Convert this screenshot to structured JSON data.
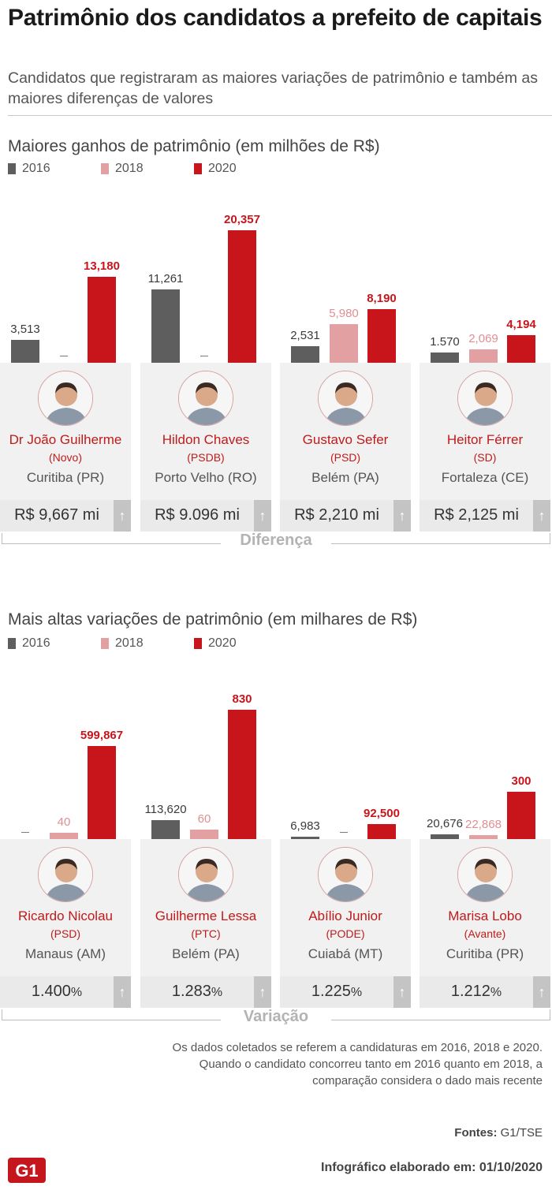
{
  "header": {
    "title": "Patrimônio dos candidatos a prefeito de capitais",
    "subtitle": "Candidatos que registraram as maiores variações de patrimônio e também as maiores diferenças de valores"
  },
  "colors": {
    "2016": "#5e5e5e",
    "2018": "#e3a0a3",
    "2020": "#c8151c",
    "name": "#c01a1a"
  },
  "legend": [
    {
      "label": "2016",
      "color": "#5e5e5e"
    },
    {
      "label": "2018",
      "color": "#e3a0a3"
    },
    {
      "label": "2020",
      "color": "#c8151c"
    }
  ],
  "chart_data": [
    {
      "type": "bar",
      "title": "Maiores ganhos de patrimônio (em milhões de R$)",
      "unit": "milhões de R$",
      "series_names": [
        "2016",
        "2018",
        "2020"
      ],
      "categories": [
        "Dr João Guilherme",
        "Hildon Chaves",
        "Gustavo Sefer",
        "Heitor Férrer"
      ],
      "values": [
        [
          3.513,
          null,
          13.18
        ],
        [
          11.261,
          null,
          20.357
        ],
        [
          2.531,
          5.98,
          8.19
        ],
        [
          1.57,
          2.069,
          4.194
        ]
      ],
      "labels": [
        [
          "3,513",
          "–",
          "13,180"
        ],
        [
          "11,261",
          "–",
          "20,357"
        ],
        [
          "2,531",
          "5,980",
          "8,190"
        ],
        [
          "1.570",
          "2,069",
          "4,194"
        ]
      ],
      "ylim": [
        0,
        20.357
      ],
      "candidates": [
        {
          "name": "Dr João Guilherme",
          "party": "(Novo)",
          "city": "Curitiba (PR)",
          "value": "R$ 9,667 mi"
        },
        {
          "name": "Hildon Chaves",
          "party": "(PSDB)",
          "city": "Porto Velho (RO)",
          "value": "R$ 9.096 mi"
        },
        {
          "name": "Gustavo Sefer",
          "party": "(PSD)",
          "city": "Belém (PA)",
          "value": "R$ 2,210 mi"
        },
        {
          "name": "Heitor Férrer",
          "party": "(SD)",
          "city": "Fortaleza (CE)",
          "value": "R$ 2,125 mi"
        }
      ],
      "bracket_label": "Diferença"
    },
    {
      "type": "bar",
      "title": "Mais altas variações de patrimônio (em milhares de R$)",
      "unit": "milhares de R$",
      "series_names": [
        "2016",
        "2018",
        "2020"
      ],
      "categories": [
        "Ricardo Nicolau",
        "Guilherme Lessa",
        "Abílio Junior",
        "Marisa Lobo"
      ],
      "values": [
        [
          null,
          40,
          599.867
        ],
        [
          113.62,
          60,
          830
        ],
        [
          6.983,
          null,
          92.5
        ],
        [
          20.676,
          22.868,
          300
        ]
      ],
      "labels": [
        [
          "–",
          "40",
          "599,867"
        ],
        [
          "113,620",
          "60",
          "830"
        ],
        [
          "6,983",
          "–",
          "92,500"
        ],
        [
          "20,676",
          "22,868",
          "300"
        ]
      ],
      "candidates": [
        {
          "name": "Ricardo Nicolau",
          "party": "(PSD)",
          "city": "Manaus (AM)",
          "value": "1.400",
          "pct": "%"
        },
        {
          "name": "Guilherme Lessa",
          "party": "(PTC)",
          "city": "Belém (PA)",
          "value": "1.283",
          "pct": "%"
        },
        {
          "name": "Abílio Junior",
          "party": "(PODE)",
          "city": "Cuiabá (MT)",
          "value": "1.225",
          "pct": "%"
        },
        {
          "name": "Marisa Lobo",
          "party": "(Avante)",
          "city": "Curitiba (PR)",
          "value": "1.212",
          "pct": "%"
        }
      ],
      "bracket_label": "Variação"
    }
  ],
  "icons": {
    "arrow": "up-arrow-icon",
    "photo": "candidate-photo-icon",
    "logo": "g1-logo-icon"
  },
  "arrow_glyph": "↑",
  "logo_text": "G1",
  "notes": [
    "Os dados coletados se referem a candidaturas em 2016, 2018 e 2020.",
    "Quando o candidato concorreu tanto em 2016 quanto em 2018, a",
    "comparação considera o dado mais recente"
  ],
  "fontes": {
    "label": "Fontes:",
    "value": "G1/TSE"
  },
  "footer": {
    "label": "Infográfico elaborado em: 01/10/2020"
  }
}
